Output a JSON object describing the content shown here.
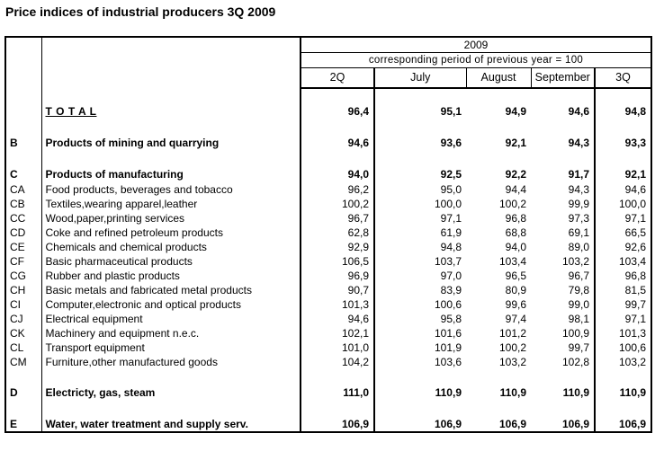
{
  "title": "Price indices of industrial producers 3Q 2009",
  "table": {
    "year": "2009",
    "note": "corresponding period of previous year = 100",
    "columns": [
      "2Q",
      "July",
      "August",
      "September",
      "3Q"
    ],
    "rows": [
      {
        "type": "spacer"
      },
      {
        "code": "",
        "name": "T O T A L",
        "bold": true,
        "underline": true,
        "values": [
          "96,4",
          "95,1",
          "94,9",
          "94,6",
          "94,8"
        ]
      },
      {
        "type": "spacer"
      },
      {
        "code": "B",
        "name": "Products of mining and quarrying",
        "bold": true,
        "values": [
          "94,6",
          "93,6",
          "92,1",
          "94,3",
          "93,3"
        ]
      },
      {
        "type": "spacer"
      },
      {
        "code": "C",
        "name": "Products of manufacturing",
        "bold": true,
        "values": [
          "94,0",
          "92,5",
          "92,2",
          "91,7",
          "92,1"
        ]
      },
      {
        "code": "CA",
        "name": "Food products, beverages and tobacco",
        "values": [
          "96,2",
          "95,0",
          "94,4",
          "94,3",
          "94,6"
        ]
      },
      {
        "code": "CB",
        "name": "Textiles,wearing apparel,leather",
        "values": [
          "100,2",
          "100,0",
          "100,2",
          "99,9",
          "100,0"
        ]
      },
      {
        "code": "CC",
        "name": "Wood,paper,printing services",
        "values": [
          "96,7",
          "97,1",
          "96,8",
          "97,3",
          "97,1"
        ]
      },
      {
        "code": "CD",
        "name": "Coke and refined petroleum products",
        "values": [
          "62,8",
          "61,9",
          "68,8",
          "69,1",
          "66,5"
        ]
      },
      {
        "code": "CE",
        "name": "Chemicals and chemical products",
        "values": [
          "92,9",
          "94,8",
          "94,0",
          "89,0",
          "92,6"
        ]
      },
      {
        "code": "CF",
        "name": "Basic pharmaceutical products",
        "values": [
          "106,5",
          "103,7",
          "103,4",
          "103,2",
          "103,4"
        ]
      },
      {
        "code": "CG",
        "name": "Rubber and plastic products",
        "values": [
          "96,9",
          "97,0",
          "96,5",
          "96,7",
          "96,8"
        ]
      },
      {
        "code": "CH",
        "name": "Basic metals and fabricated metal products",
        "values": [
          "90,7",
          "83,9",
          "80,9",
          "79,8",
          "81,5"
        ]
      },
      {
        "code": "CI",
        "name": "Computer,electronic and optical products",
        "values": [
          "101,3",
          "100,6",
          "99,6",
          "99,0",
          "99,7"
        ]
      },
      {
        "code": "CJ",
        "name": "Electrical equipment",
        "values": [
          "94,6",
          "95,8",
          "97,4",
          "98,1",
          "97,1"
        ]
      },
      {
        "code": "CK",
        "name": "Machinery and equipment n.e.c.",
        "values": [
          "102,1",
          "101,6",
          "101,2",
          "100,9",
          "101,3"
        ]
      },
      {
        "code": "CL",
        "name": "Transport equipment",
        "values": [
          "101,0",
          "101,9",
          "100,2",
          "99,7",
          "100,6"
        ]
      },
      {
        "code": "CM",
        "name": "Furniture,other manufactured goods",
        "values": [
          "104,2",
          "103,6",
          "103,2",
          "102,8",
          "103,2"
        ]
      },
      {
        "type": "spacer"
      },
      {
        "code": "D",
        "name": "Electricty, gas, steam",
        "bold": true,
        "values": [
          "111,0",
          "110,9",
          "110,9",
          "110,9",
          "110,9"
        ]
      },
      {
        "type": "spacer"
      },
      {
        "code": "E",
        "name": "Water, water treatment and supply serv.",
        "bold": true,
        "values": [
          "106,9",
          "106,9",
          "106,9",
          "106,9",
          "106,9"
        ]
      }
    ]
  }
}
